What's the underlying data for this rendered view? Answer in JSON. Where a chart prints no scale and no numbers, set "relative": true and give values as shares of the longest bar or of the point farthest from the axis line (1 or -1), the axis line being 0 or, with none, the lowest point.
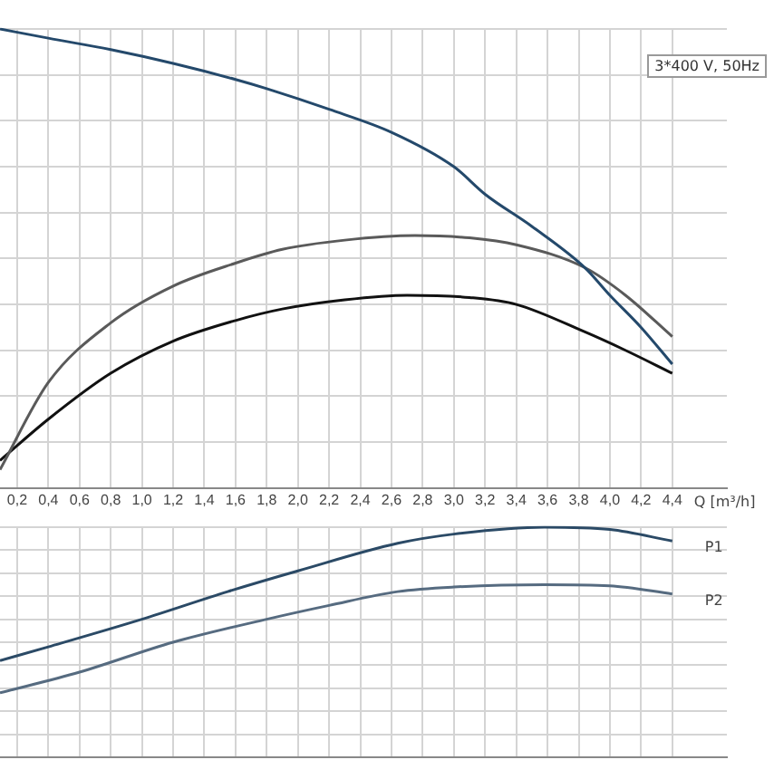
{
  "chart_data": [
    {
      "type": "line",
      "relative": true,
      "xlabel": "Q [m³/h]",
      "annotations": [
        "3*400 V, 50Hz"
      ],
      "xlim": [
        0.09,
        4.75
      ],
      "xticks": [
        {
          "value": 0.2,
          "label": "0,2"
        },
        {
          "value": 0.4,
          "label": "0,4"
        },
        {
          "value": 0.6,
          "label": "0,6"
        },
        {
          "value": 0.8,
          "label": "0,8"
        },
        {
          "value": 1.0,
          "label": "1,0"
        },
        {
          "value": 1.2,
          "label": "1,2"
        },
        {
          "value": 1.4,
          "label": "1,4"
        },
        {
          "value": 1.6,
          "label": "1,6"
        },
        {
          "value": 1.8,
          "label": "1,8"
        },
        {
          "value": 2.0,
          "label": "2,0"
        },
        {
          "value": 2.2,
          "label": "2,2"
        },
        {
          "value": 2.4,
          "label": "2,4"
        },
        {
          "value": 2.6,
          "label": "2,6"
        },
        {
          "value": 2.8,
          "label": "2,8"
        },
        {
          "value": 3.0,
          "label": "3,0"
        },
        {
          "value": 3.2,
          "label": "3,2"
        },
        {
          "value": 3.4,
          "label": "3,4"
        },
        {
          "value": 3.6,
          "label": "3,6"
        },
        {
          "value": 3.8,
          "label": "3,8"
        },
        {
          "value": 4.0,
          "label": "4,0"
        },
        {
          "value": 4.2,
          "label": "4,2"
        },
        {
          "value": 4.4,
          "label": "4,4"
        }
      ],
      "grid": true,
      "tick_labels": "x",
      "marker": "none",
      "series": [
        {
          "color": "#24496b",
          "x": [
            0.09,
            0.4,
            0.8,
            1.2,
            1.6,
            1.8,
            2.2,
            2.6,
            3.0,
            3.2,
            3.5,
            3.84,
            4.0,
            4.2,
            4.4
          ],
          "values": [
            1,
            0.98,
            0.955,
            0.925,
            0.89,
            0.87,
            0.825,
            0.775,
            0.7,
            0.64,
            0.57,
            0.48,
            0.42,
            0.35,
            0.27
          ]
        },
        {
          "color": "#5a5a5a",
          "x": [
            0.09,
            0.4,
            0.8,
            1.2,
            1.6,
            1.9,
            2.3,
            2.75,
            3.1,
            3.4,
            3.84,
            4.1,
            4.4
          ],
          "values": [
            0.04,
            0.23,
            0.36,
            0.44,
            0.49,
            0.52,
            0.54,
            0.55,
            0.545,
            0.53,
            0.48,
            0.42,
            0.33
          ]
        },
        {
          "color": "#111111",
          "x": [
            0.09,
            0.4,
            0.8,
            1.2,
            1.6,
            1.9,
            2.3,
            2.7,
            3.1,
            3.4,
            3.84,
            4.1,
            4.4
          ],
          "values": [
            0.06,
            0.15,
            0.25,
            0.32,
            0.365,
            0.39,
            0.41,
            0.42,
            0.415,
            0.4,
            0.34,
            0.3,
            0.25
          ]
        }
      ]
    },
    {
      "type": "line",
      "relative": true,
      "xlim": [
        0.09,
        4.75
      ],
      "xticks": [
        0.2,
        0.4,
        0.6,
        0.8,
        1.0,
        1.2,
        1.4,
        1.6,
        1.8,
        2.0,
        2.2,
        2.4,
        2.6,
        2.8,
        3.0,
        3.2,
        3.4,
        3.6,
        3.8,
        4.0,
        4.2,
        4.4
      ],
      "grid": true,
      "tick_labels": false,
      "marker": "none",
      "series": [
        {
          "name": "P1",
          "color": "#2b4a66",
          "x": [
            0.09,
            0.4,
            1.0,
            1.55,
            2.0,
            2.64,
            3.0,
            3.58,
            4.0,
            4.4
          ],
          "values": [
            0.42,
            0.48,
            0.6,
            0.72,
            0.81,
            0.93,
            0.97,
            1.0,
            0.99,
            0.94
          ]
        },
        {
          "name": "P2",
          "color": "#566b80",
          "x": [
            0.09,
            0.6,
            1.2,
            1.8,
            2.2,
            2.64,
            3.0,
            3.58,
            4.0,
            4.4
          ],
          "values": [
            0.28,
            0.37,
            0.5,
            0.6,
            0.66,
            0.72,
            0.74,
            0.75,
            0.745,
            0.71
          ]
        }
      ]
    }
  ]
}
